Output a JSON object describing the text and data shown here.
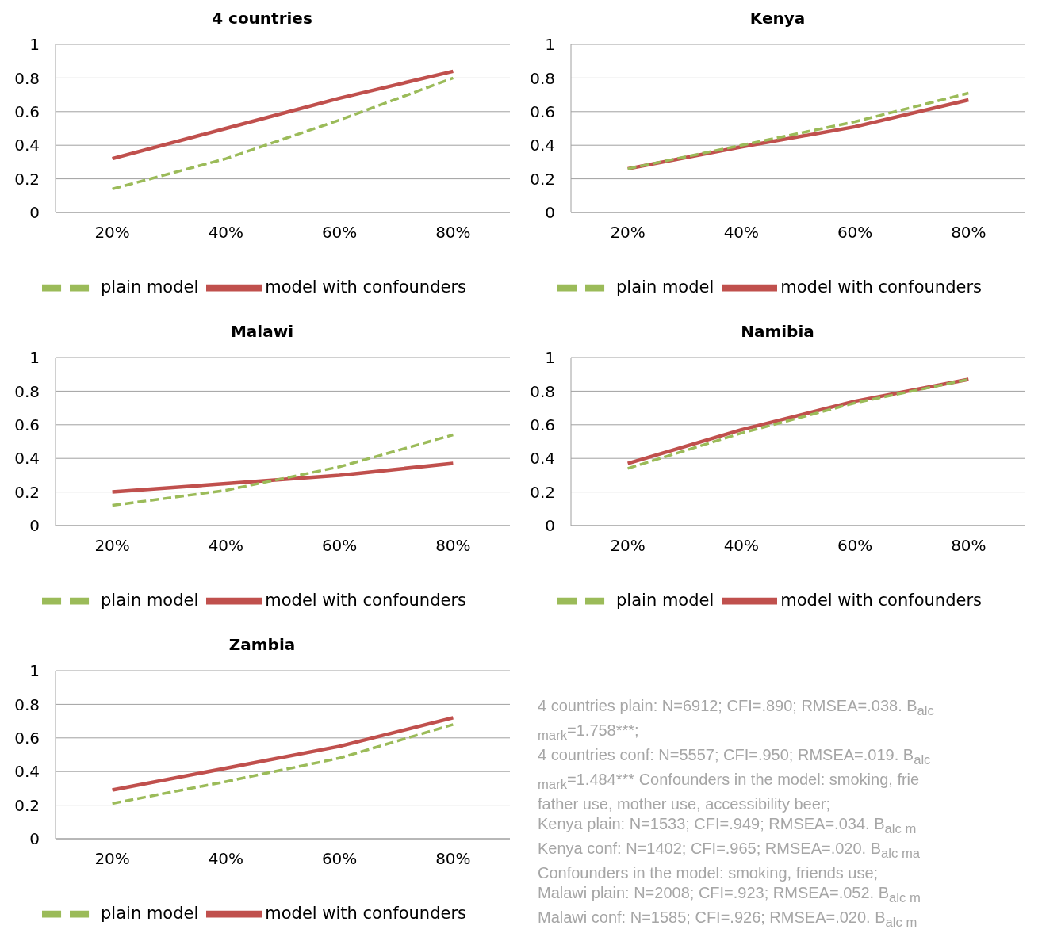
{
  "chart_data": [
    {
      "type": "line",
      "title": "4 countries",
      "categories": [
        "20%",
        "40%",
        "60%",
        "80%"
      ],
      "ylim": [
        0,
        1
      ],
      "yticks": [
        0,
        0.2,
        0.4,
        0.6,
        0.8,
        1
      ],
      "grid": "y",
      "legend": "bottom",
      "marker": "none",
      "series": [
        {
          "name": "plain model",
          "color": "#9bbb59",
          "line_style": "dashed",
          "values": [
            0.14,
            0.32,
            0.55,
            0.8
          ]
        },
        {
          "name": "model with confounders",
          "color": "#c0504d",
          "line_style": "solid",
          "values": [
            0.32,
            0.5,
            0.68,
            0.84
          ]
        }
      ]
    },
    {
      "type": "line",
      "title": "Kenya",
      "categories": [
        "20%",
        "40%",
        "60%",
        "80%"
      ],
      "ylim": [
        0,
        1
      ],
      "yticks": [
        0,
        0.2,
        0.4,
        0.6,
        0.8,
        1
      ],
      "grid": "y",
      "legend": "bottom",
      "marker": "none",
      "series": [
        {
          "name": "plain model",
          "color": "#9bbb59",
          "line_style": "dashed",
          "values": [
            0.26,
            0.4,
            0.54,
            0.71
          ]
        },
        {
          "name": "model with confounders",
          "color": "#c0504d",
          "line_style": "solid",
          "values": [
            0.26,
            0.39,
            0.51,
            0.67
          ]
        }
      ]
    },
    {
      "type": "line",
      "title": "Malawi",
      "categories": [
        "20%",
        "40%",
        "60%",
        "80%"
      ],
      "ylim": [
        0,
        1
      ],
      "yticks": [
        0,
        0.2,
        0.4,
        0.6,
        0.8,
        1
      ],
      "grid": "y",
      "legend": "bottom",
      "marker": "none",
      "series": [
        {
          "name": "plain model",
          "color": "#9bbb59",
          "line_style": "dashed",
          "values": [
            0.12,
            0.21,
            0.35,
            0.54
          ]
        },
        {
          "name": "model with confounders",
          "color": "#c0504d",
          "line_style": "solid",
          "values": [
            0.2,
            0.25,
            0.3,
            0.37
          ]
        }
      ]
    },
    {
      "type": "line",
      "title": "Namibia",
      "categories": [
        "20%",
        "40%",
        "60%",
        "80%"
      ],
      "ylim": [
        0,
        1
      ],
      "yticks": [
        0,
        0.2,
        0.4,
        0.6,
        0.8,
        1
      ],
      "grid": "y",
      "legend": "bottom",
      "marker": "none",
      "series": [
        {
          "name": "plain model",
          "color": "#9bbb59",
          "line_style": "dashed",
          "values": [
            0.34,
            0.55,
            0.73,
            0.87
          ]
        },
        {
          "name": "model with confounders",
          "color": "#c0504d",
          "line_style": "solid",
          "values": [
            0.37,
            0.57,
            0.74,
            0.87
          ]
        }
      ]
    },
    {
      "type": "line",
      "title": "Zambia",
      "categories": [
        "20%",
        "40%",
        "60%",
        "80%"
      ],
      "ylim": [
        0,
        1
      ],
      "yticks": [
        0,
        0.2,
        0.4,
        0.6,
        0.8,
        1
      ],
      "grid": "y",
      "legend": "bottom",
      "marker": "none",
      "series": [
        {
          "name": "plain model",
          "color": "#9bbb59",
          "line_style": "dashed",
          "values": [
            0.21,
            0.34,
            0.48,
            0.68
          ]
        },
        {
          "name": "model with confounders",
          "color": "#c0504d",
          "line_style": "solid",
          "values": [
            0.29,
            0.42,
            0.55,
            0.72
          ]
        }
      ]
    },
    {
      "type": "other",
      "annotations": [
        "4 countries plain: N=6912; CFI=.890; RMSEA=.038. B$_{alc mark}$=1.758***;",
        "4 countries conf: N=5557; CFI=.950; RMSEA=.019. B$_{alc mark}$=1.484*** Confounders in the model: smoking, frie",
        "father use, mother use, accessibility beer;",
        "Kenya plain: N=1533; CFI=.949; RMSEA=.034. B$_{alc m}$",
        "Kenya conf: N=1402; CFI=.965; RMSEA=.020. B$_{alc ma}$",
        "Confounders in the model: smoking, friends use;",
        "Malawi plain: N=2008; CFI=.923; RMSEA=.052. B$_{alc m}$",
        "Malawi conf: N=1585; CFI=.926; RMSEA=.020. B$_{alc m}$"
      ]
    }
  ]
}
